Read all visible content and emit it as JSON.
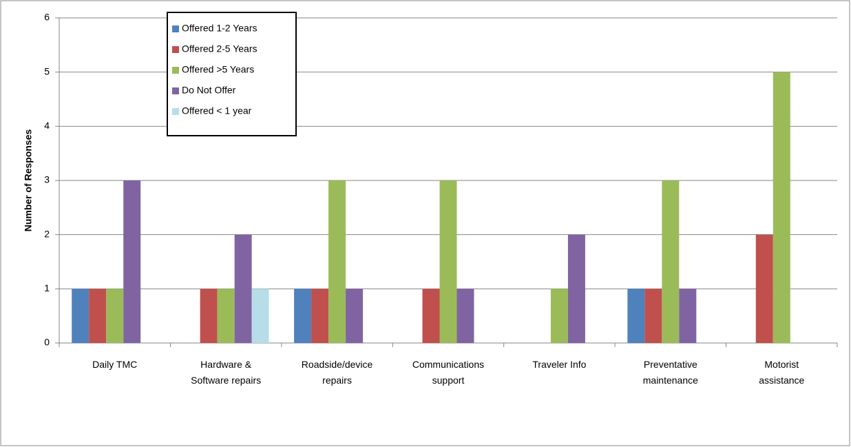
{
  "chart_data": {
    "type": "bar",
    "y_label": "Number of Responses",
    "categories": [
      "Daily TMC",
      "Hardware & Software repairs",
      "Roadside/device repairs",
      "Communications support",
      "Traveler Info",
      "Preventative maintenance",
      "Motorist assistance"
    ],
    "series": [
      {
        "name": "Offered 1-2 Years",
        "color": "#4f81bd",
        "values": [
          1,
          0,
          1,
          0,
          0,
          1,
          0
        ]
      },
      {
        "name": "Offered 2-5 Years",
        "color": "#c0504d",
        "values": [
          1,
          1,
          1,
          1,
          0,
          1,
          2
        ]
      },
      {
        "name": "Offered >5 Years",
        "color": "#9bbb59",
        "values": [
          1,
          1,
          3,
          3,
          1,
          3,
          5
        ]
      },
      {
        "name": "Do Not Offer",
        "color": "#8064a2",
        "values": [
          3,
          2,
          1,
          1,
          2,
          1,
          0
        ]
      },
      {
        "name": "Offered < 1 year",
        "color": "#b7dee8",
        "values": [
          0,
          1,
          0,
          0,
          0,
          0,
          0
        ]
      }
    ],
    "ylim": [
      0,
      6
    ],
    "yticks": [
      0,
      1,
      2,
      3,
      4,
      5,
      6
    ],
    "grid": true,
    "legend": "top-left"
  }
}
